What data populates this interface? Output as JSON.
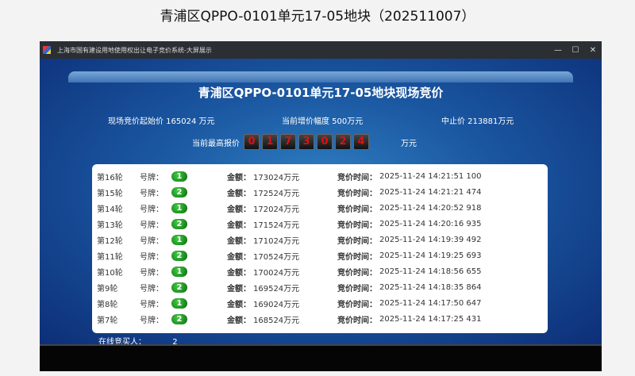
{
  "caption": "青浦区QPPO-0101单元17-05地块（202511007）",
  "window": {
    "title": "上海市国有建设用地使用权出让电子竞价系统-大屏展示",
    "minimize": "—",
    "maximize": "☐",
    "close": "✕"
  },
  "main": {
    "title": "青浦区QPPO-0101单元17-05地块现场竞价",
    "start_price": "现场竞价起始价 165024 万元",
    "increment": "当前增价幅度 500万元",
    "stop_price": "中止价 213881万元",
    "max_label": "当前最高报价",
    "max_digits": [
      "0",
      "1",
      "7",
      "3",
      "0",
      "2",
      "4"
    ],
    "max_unit": "万元"
  },
  "table": {
    "paddle_label": "号牌：",
    "amount_label": "金额：",
    "time_label": "竞价时间：",
    "rows": [
      {
        "round": "第16轮",
        "paddle": "1",
        "amount": "173024万元",
        "time": "2025-11-24 14:21:51 100"
      },
      {
        "round": "第15轮",
        "paddle": "2",
        "amount": "172524万元",
        "time": "2025-11-24 14:21:21 474"
      },
      {
        "round": "第14轮",
        "paddle": "1",
        "amount": "172024万元",
        "time": "2025-11-24 14:20:52 918"
      },
      {
        "round": "第13轮",
        "paddle": "2",
        "amount": "171524万元",
        "time": "2025-11-24 14:20:16 935"
      },
      {
        "round": "第12轮",
        "paddle": "1",
        "amount": "171024万元",
        "time": "2025-11-24 14:19:39 492"
      },
      {
        "round": "第11轮",
        "paddle": "2",
        "amount": "170524万元",
        "time": "2025-11-24 14:19:25 693"
      },
      {
        "round": "第10轮",
        "paddle": "1",
        "amount": "170024万元",
        "time": "2025-11-24 14:18:56 655"
      },
      {
        "round": "第9轮",
        "paddle": "2",
        "amount": "169524万元",
        "time": "2025-11-24 14:18:35 864"
      },
      {
        "round": "第8轮",
        "paddle": "1",
        "amount": "169024万元",
        "time": "2025-11-24 14:17:50 647"
      },
      {
        "round": "第7轮",
        "paddle": "2",
        "amount": "168524万元",
        "time": "2025-11-24 14:17:25 431"
      }
    ]
  },
  "online": {
    "label": "在线竞买人：",
    "count": "2"
  }
}
